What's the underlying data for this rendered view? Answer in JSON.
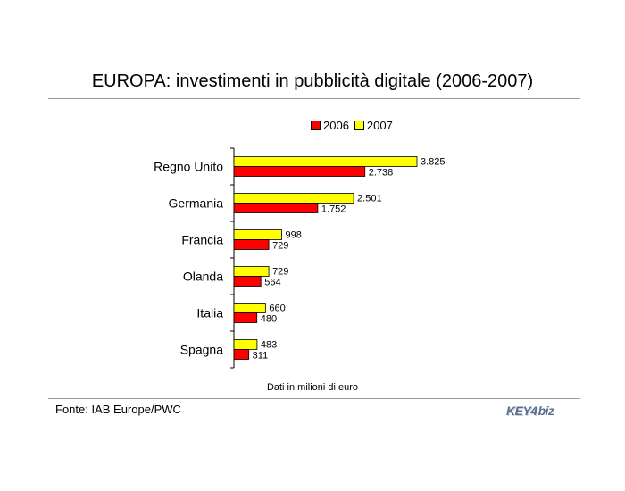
{
  "title": "EUROPA: investimenti in pubblicità digitale (2006-2007)",
  "note": "Dati in milioni di euro",
  "source": "Fonte: IAB Europe/PWC",
  "logo": {
    "key": "KEY4",
    "biz": "biz"
  },
  "colors": {
    "2006": "#ff0000",
    "2007": "#ffff00",
    "axis": "#000000"
  },
  "chart_data": {
    "type": "bar",
    "orientation": "horizontal",
    "title": "EUROPA: investimenti in pubblicità digitale (2006-2007)",
    "categories": [
      "Regno Unito",
      "Germania",
      "Francia",
      "Olanda",
      "Italia",
      "Spagna"
    ],
    "series": [
      {
        "name": "2006",
        "values": [
          2738,
          1752,
          729,
          564,
          480,
          311
        ],
        "labels": [
          "2.738",
          "1.752",
          "729",
          "564",
          "480",
          "311"
        ]
      },
      {
        "name": "2007",
        "values": [
          3825,
          2501,
          998,
          729,
          660,
          483
        ],
        "labels": [
          "3.825",
          "2.501",
          "998",
          "729",
          "660",
          "483"
        ]
      }
    ],
    "xlim": [
      0,
      3825
    ],
    "legend": "top",
    "grid": false,
    "xlabel": "",
    "ylabel": ""
  }
}
